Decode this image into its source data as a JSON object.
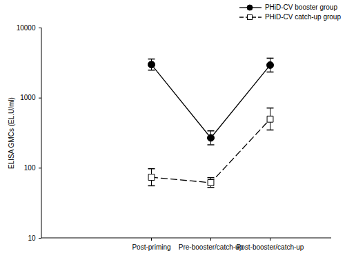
{
  "chart_data": {
    "type": "line",
    "y_label": "ELISA GMCs (EL.U/ml)",
    "categories": [
      "Post-priming",
      "Pre-booster/catch-up",
      "Post-booster/catch-up"
    ],
    "log": "y",
    "ylim": [
      10,
      10000
    ],
    "yticks": [
      10,
      100,
      1000,
      10000
    ],
    "grid": false,
    "legend": "top-right",
    "series": [
      {
        "name": "PHiD-CV booster group",
        "color": "#000000",
        "marker": "circle",
        "line_style": "solid",
        "values": [
          3000,
          270,
          2950
        ],
        "error_low": [
          2500,
          215,
          2350
        ],
        "error_high": [
          3600,
          340,
          3700
        ]
      },
      {
        "name": "PHiD-CV catch-up group",
        "color": "#000000",
        "marker": "open-square",
        "line_style": "dashed",
        "values": [
          74,
          62,
          500
        ],
        "error_low": [
          56,
          53,
          350
        ],
        "error_high": [
          98,
          73,
          720
        ]
      }
    ]
  }
}
